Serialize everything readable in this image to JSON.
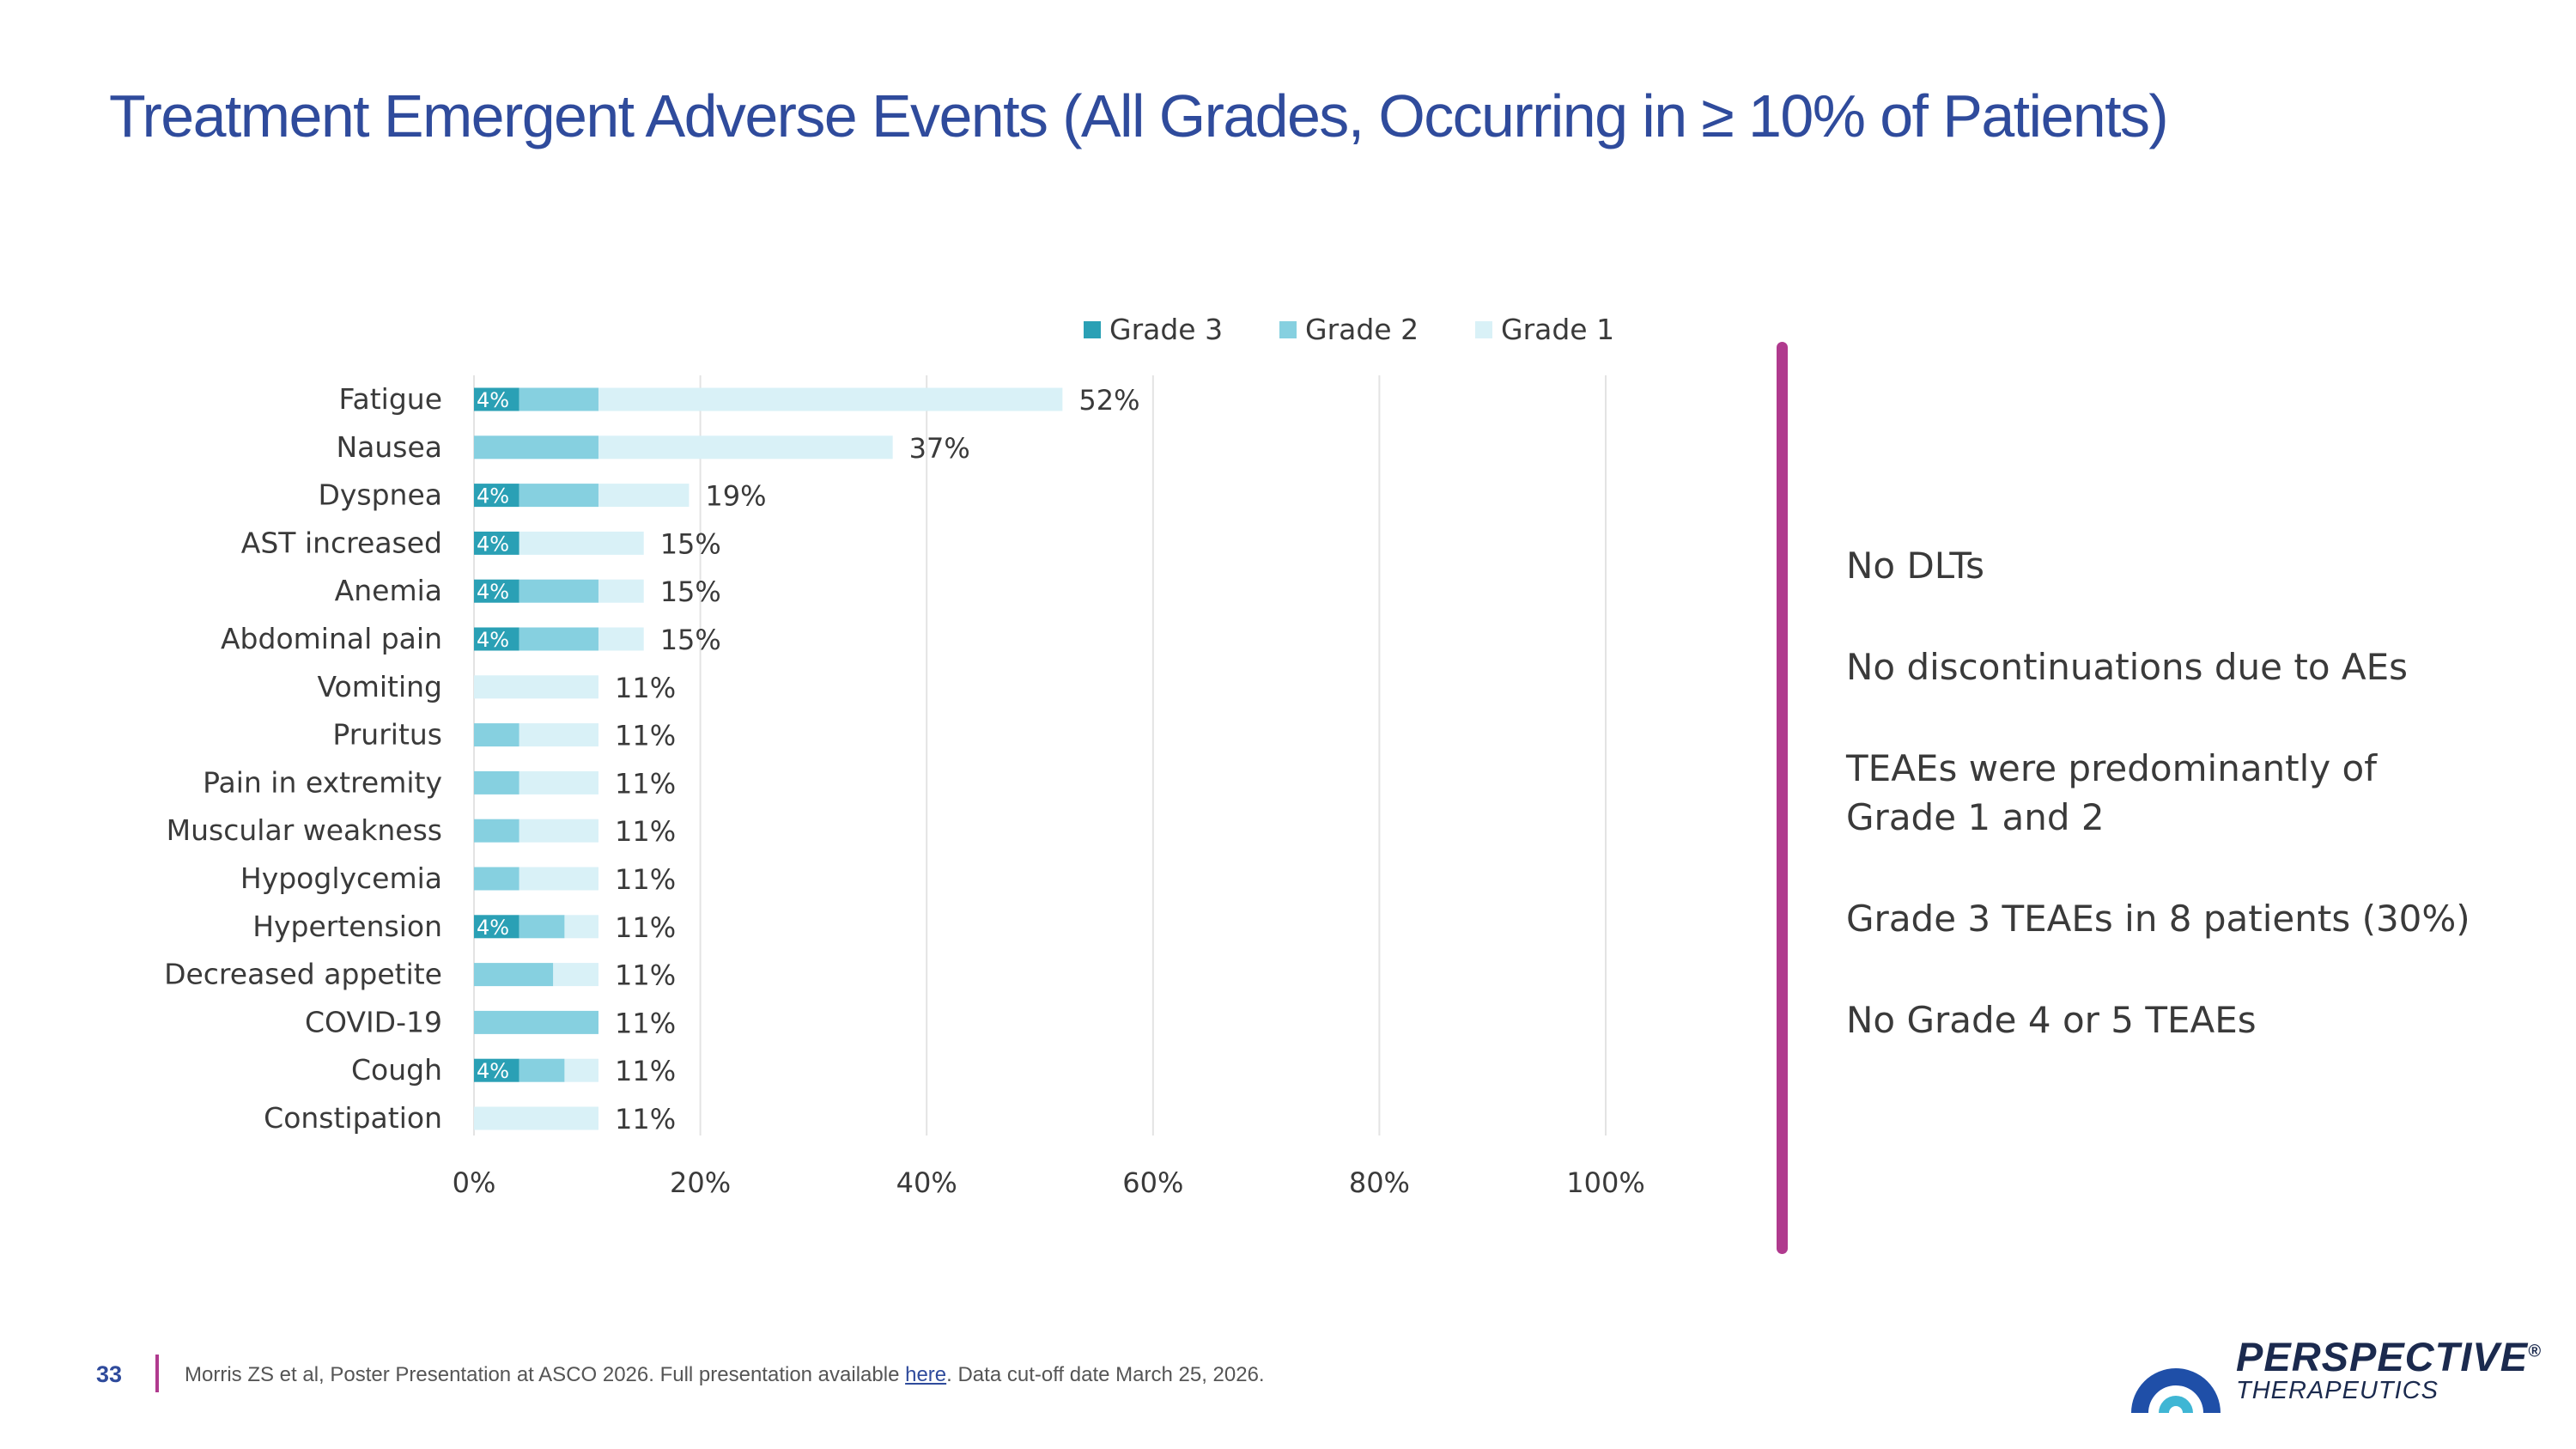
{
  "title": "Treatment Emergent Adverse Events (All Grades, Occurring in ≥ 10% of Patients)",
  "colors": {
    "grade3": "#2aa0b5",
    "grade2": "#86d0e0",
    "grade1": "#d9f1f7",
    "title": "#2f4b9c",
    "divider": "#b03a8e"
  },
  "chart_data": {
    "type": "bar",
    "orientation": "horizontal",
    "stacked": true,
    "categories": [
      "Fatigue",
      "Nausea",
      "Dyspnea",
      "AST increased",
      "Anemia",
      "Abdominal pain",
      "Vomiting",
      "Pruritus",
      "Pain in extremity",
      "Muscular weakness",
      "Hypoglycemia",
      "Hypertension",
      "Decreased appetite",
      "COVID-19",
      "Cough",
      "Constipation"
    ],
    "series": [
      {
        "name": "Grade 3",
        "values": [
          4,
          0,
          4,
          4,
          4,
          4,
          0,
          0,
          0,
          0,
          0,
          4,
          0,
          0,
          4,
          0
        ]
      },
      {
        "name": "Grade 2",
        "values": [
          7,
          11,
          7,
          0,
          7,
          7,
          0,
          4,
          4,
          4,
          4,
          4,
          7,
          11,
          4,
          0
        ]
      },
      {
        "name": "Grade 1",
        "values": [
          41,
          26,
          8,
          11,
          4,
          4,
          11,
          7,
          7,
          7,
          7,
          3,
          4,
          0,
          3,
          11
        ]
      }
    ],
    "segment_labels": [
      "4%",
      "",
      "4%",
      "4%",
      "4%",
      "4%",
      "",
      "",
      "",
      "",
      "",
      "4%",
      "",
      "",
      "4%",
      ""
    ],
    "total_labels": [
      "52%",
      "37%",
      "19%",
      "15%",
      "15%",
      "15%",
      "11%",
      "11%",
      "11%",
      "11%",
      "11%",
      "11%",
      "11%",
      "11%",
      "11%",
      "11%"
    ],
    "xlim": [
      0,
      100
    ],
    "xticks": [
      0,
      20,
      40,
      60,
      80,
      100
    ],
    "xtick_labels": [
      "0%",
      "20%",
      "40%",
      "60%",
      "80%",
      "100%"
    ],
    "grid": "vertical",
    "legend_position": "top",
    "legend": [
      "Grade 3",
      "Grade 2",
      "Grade 1"
    ]
  },
  "notes": [
    "No DLTs",
    "No discontinuations due to AEs",
    "TEAEs were predominantly of Grade 1 and 2",
    "Grade 3 TEAEs in 8 patients (30%)",
    "No Grade 4  or 5 TEAEs"
  ],
  "footer": {
    "page_number": "33",
    "reference_prefix": "Morris ZS et al, Poster Presentation at ASCO 2026. Full presentation available ",
    "reference_link": "here",
    "reference_suffix": ". Data cut-off date March 25, 2026."
  },
  "logo": {
    "name": "PERSPECTIVE",
    "sub": "THERAPEUTICS",
    "mark": "®"
  }
}
